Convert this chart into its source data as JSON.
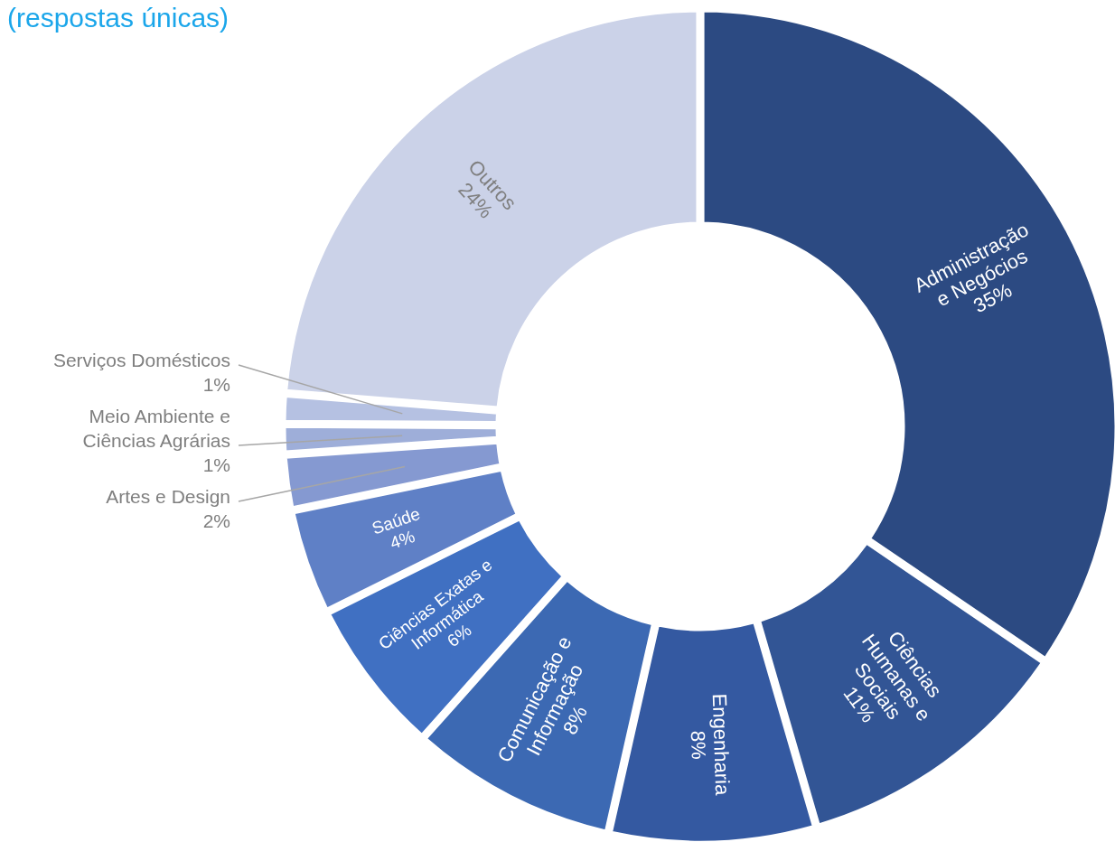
{
  "chart_data": {
    "type": "donut",
    "title": "(respostas únicas)",
    "categories": [
      "Administração e Negócios",
      "Ciências Humanas e Sociais",
      "Engenharia",
      "Comunicação e Informação",
      "Ciências Exatas e Informática",
      "Saúde",
      "Artes e Design",
      "Meio Ambiente e Ciências Agrárias",
      "Serviços Domésticos",
      "Outros"
    ],
    "values": [
      35,
      11,
      8,
      8,
      6,
      4,
      2,
      1,
      1,
      24
    ],
    "colors": [
      "#2c4a82",
      "#325595",
      "#3459a1",
      "#3c69b3",
      "#4070c2",
      "#5f80c6",
      "#8599d1",
      "#9eaed9",
      "#b5c1e2",
      "#cbd2e8"
    ],
    "value_labels": [
      "35%",
      "11%",
      "8%",
      "8%",
      "6%",
      "4%",
      "2%",
      "1%",
      "1%",
      "24%"
    ]
  }
}
